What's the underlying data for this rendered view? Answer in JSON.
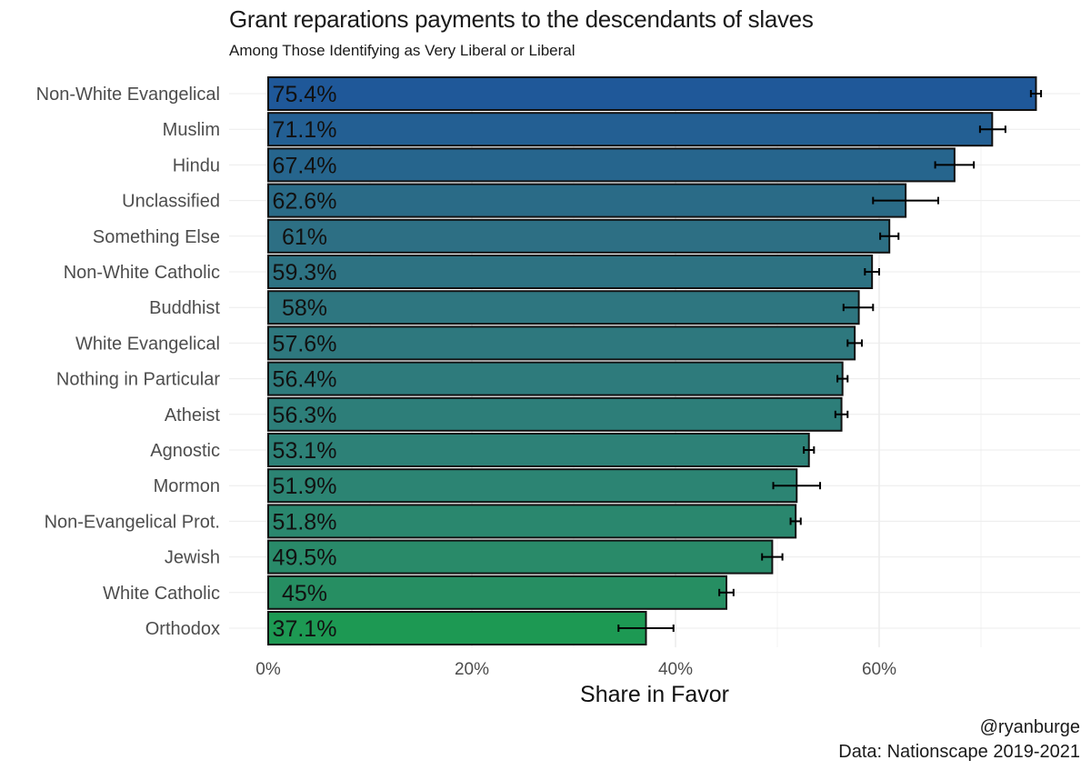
{
  "chart_data": {
    "type": "bar",
    "orientation": "horizontal",
    "title": "Grant reparations payments to the descendants of slaves",
    "subtitle": "Among Those Identifying as Very Liberal or Liberal",
    "xlabel": "Share in Favor",
    "ylabel": "",
    "xlim": [
      0,
      0.8
    ],
    "x_ticks": [
      0,
      0.2,
      0.4,
      0.6
    ],
    "x_tick_labels": [
      "0%",
      "20%",
      "40%",
      "60%"
    ],
    "grid": true,
    "categories": [
      "Non-White Evangelical",
      "Muslim",
      "Hindu",
      "Unclassified",
      "Something Else",
      "Non-White Catholic",
      "Buddhist",
      "White Evangelical",
      "Nothing in Particular",
      "Atheist",
      "Agnostic",
      "Mormon",
      "Non-Evangelical Prot.",
      "Jewish",
      "White Catholic",
      "Orthodox"
    ],
    "values": [
      0.754,
      0.711,
      0.674,
      0.626,
      0.61,
      0.593,
      0.58,
      0.576,
      0.564,
      0.563,
      0.531,
      0.519,
      0.518,
      0.495,
      0.45,
      0.371
    ],
    "value_labels": [
      "75.4%",
      "71.1%",
      "67.4%",
      "62.6%",
      "61%",
      "59.3%",
      "58%",
      "57.6%",
      "56.4%",
      "56.3%",
      "53.1%",
      "51.9%",
      "51.8%",
      "49.5%",
      "45%",
      "37.1%"
    ],
    "error_low": [
      0.749,
      0.699,
      0.655,
      0.594,
      0.601,
      0.586,
      0.565,
      0.569,
      0.559,
      0.557,
      0.526,
      0.496,
      0.513,
      0.485,
      0.443,
      0.344
    ],
    "error_high": [
      0.759,
      0.724,
      0.693,
      0.658,
      0.619,
      0.6,
      0.594,
      0.583,
      0.569,
      0.569,
      0.536,
      0.542,
      0.523,
      0.505,
      0.457,
      0.398
    ],
    "colors": [
      "#1f5899",
      "#235f93",
      "#26658d",
      "#2a6b87",
      "#2d6f84",
      "#2d7282",
      "#2e7680",
      "#2e787e",
      "#2e7b7c",
      "#2d7e79",
      "#2d8177",
      "#2c8473",
      "#2a876e",
      "#298a69",
      "#268e62",
      "#1d9953"
    ]
  },
  "credits": {
    "handle": "@ryanburge",
    "source": "Data: Nationscape 2019-2021"
  }
}
